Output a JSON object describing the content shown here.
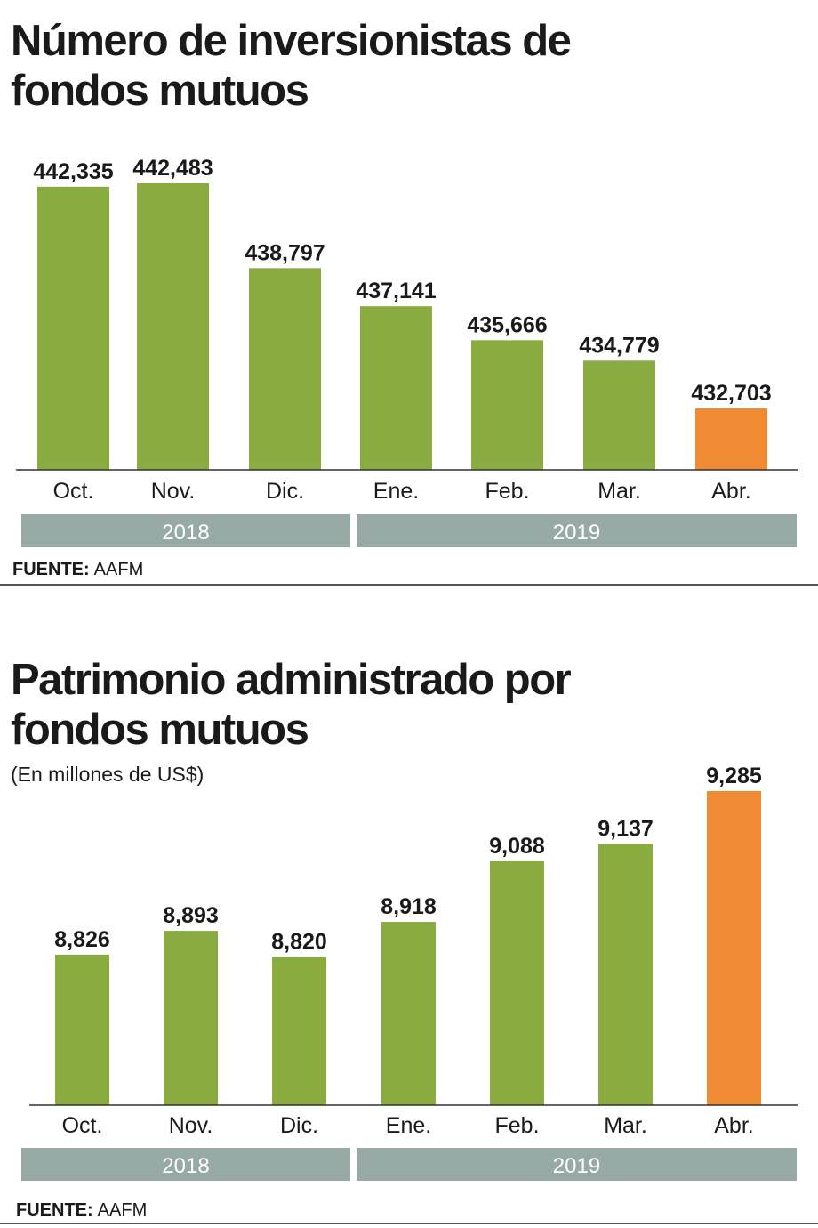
{
  "colors": {
    "bar": "#8aab3f",
    "highlight": "#f08b34",
    "year_band": "#98aaa6",
    "axis": "#333333"
  },
  "chart_data": [
    {
      "type": "bar",
      "title": "Número de inversionistas de fondos mutuos",
      "title_lines": [
        "Número de inversionistas de",
        "fondos mutuos"
      ],
      "categories": [
        "Oct.",
        "Nov.",
        "Dic.",
        "Ene.",
        "Feb.",
        "Mar.",
        "Abr."
      ],
      "values": [
        442335,
        442483,
        438797,
        437141,
        435666,
        434779,
        432703
      ],
      "value_labels": [
        "442,335",
        "442,483",
        "438,797",
        "437,141",
        "435,666",
        "434,779",
        "432,703"
      ],
      "highlight_index": 6,
      "years": [
        {
          "label": "2018",
          "months": 3
        },
        {
          "label": "2019",
          "months": 4
        }
      ],
      "ylim": [
        430036,
        442483
      ],
      "grid": false,
      "source_label": "FUENTE:",
      "source": "AAFM"
    },
    {
      "type": "bar",
      "title": "Patrimonio administrado por fondos mutuos",
      "title_lines": [
        "Patrimonio administrado por",
        "fondos mutuos"
      ],
      "subtitle": "(En millones de US$)",
      "categories": [
        "Oct.",
        "Nov.",
        "Dic.",
        "Ene.",
        "Feb.",
        "Mar.",
        "Abr."
      ],
      "values": [
        8826,
        8893,
        8820,
        8918,
        9088,
        9137,
        9285
      ],
      "value_labels": [
        "8,826",
        "8,893",
        "8,820",
        "8,918",
        "9,088",
        "9,137",
        "9,285"
      ],
      "highlight_index": 6,
      "years": [
        {
          "label": "2018",
          "months": 3
        },
        {
          "label": "2019",
          "months": 4
        }
      ],
      "ylim": [
        8404,
        9285
      ],
      "grid": false,
      "source_label": "FUENTE:",
      "source": "AAFM"
    }
  ]
}
